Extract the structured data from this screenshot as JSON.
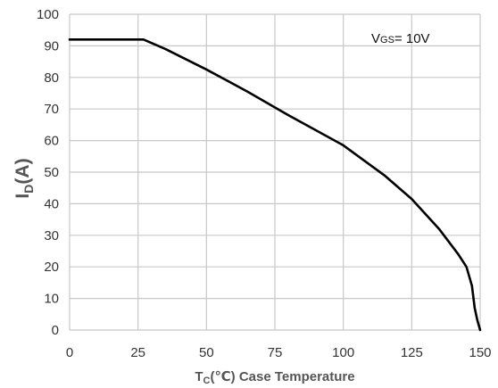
{
  "chart_data": {
    "type": "line",
    "title": "",
    "xlabel": {
      "main": "T",
      "sub": "C",
      "rest": "(℃) Case Temperature"
    },
    "ylabel": {
      "main": "I",
      "sub": "D",
      "rest": "(A)"
    },
    "xlim": [
      0,
      150
    ],
    "ylim": [
      0,
      100
    ],
    "x_ticks": [
      0,
      25,
      50,
      75,
      100,
      125,
      150
    ],
    "y_ticks": [
      0,
      10,
      20,
      30,
      40,
      50,
      60,
      70,
      80,
      90,
      100
    ],
    "grid": true,
    "annotation": {
      "main": "V",
      "sub": "GS",
      "rest": "= 10V"
    },
    "series": [
      {
        "color": "#000000",
        "x": [
          0,
          25,
          27,
          35,
          50,
          65,
          80,
          100,
          115,
          125,
          135,
          142,
          145,
          147,
          148,
          149,
          150
        ],
        "y": [
          92,
          92,
          92,
          89,
          82.5,
          75.5,
          68,
          58.5,
          49,
          41.5,
          32,
          24,
          20,
          14,
          7,
          3,
          0
        ]
      }
    ]
  }
}
